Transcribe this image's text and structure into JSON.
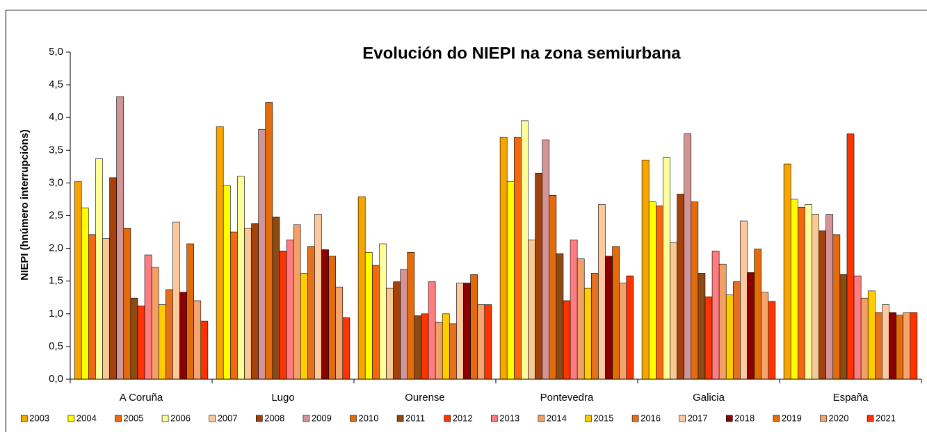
{
  "chart_data": {
    "type": "bar",
    "title": "Evolución do NIEPI na zona semiurbana",
    "y_label": "NIEPI (hnúmero interrupcións)",
    "categories": [
      "A Coruña",
      "Lugo",
      "Ourense",
      "Pontevedra",
      "Galicia",
      "España"
    ],
    "ylim": [
      0,
      5
    ],
    "yticks": [
      {
        "value": 0,
        "label": "0,0"
      },
      {
        "value": 0.5,
        "label": "0,5"
      },
      {
        "value": 1,
        "label": "1,0"
      },
      {
        "value": 1.5,
        "label": "1,5"
      },
      {
        "value": 2,
        "label": "2,0"
      },
      {
        "value": 2.5,
        "label": "2,5"
      },
      {
        "value": 3,
        "label": "3,0"
      },
      {
        "value": 3.5,
        "label": "3,5"
      },
      {
        "value": 4,
        "label": "4,0"
      },
      {
        "value": 4.5,
        "label": "4,5"
      },
      {
        "value": 5,
        "label": "5,0"
      }
    ],
    "legend": "bottom",
    "series": [
      {
        "name": "2003",
        "color": "#f7a600",
        "values": [
          3.02,
          3.86,
          2.79,
          3.7,
          3.35,
          3.29
        ]
      },
      {
        "name": "2004",
        "color": "#ffff00",
        "values": [
          2.62,
          2.96,
          1.94,
          3.02,
          2.71,
          2.75
        ]
      },
      {
        "name": "2005",
        "color": "#f26a10",
        "values": [
          2.21,
          2.25,
          1.74,
          3.7,
          2.65,
          2.63
        ]
      },
      {
        "name": "2006",
        "color": "#ffff99",
        "values": [
          3.37,
          3.1,
          2.07,
          3.95,
          3.39,
          2.67
        ]
      },
      {
        "name": "2007",
        "color": "#f9c994",
        "values": [
          2.15,
          2.31,
          1.39,
          2.13,
          2.09,
          2.52
        ]
      },
      {
        "name": "2008",
        "color": "#a6410b",
        "values": [
          3.08,
          2.38,
          1.49,
          3.15,
          2.83,
          2.27
        ]
      },
      {
        "name": "2009",
        "color": "#d29494",
        "values": [
          4.32,
          3.82,
          1.68,
          3.66,
          3.75,
          2.52
        ]
      },
      {
        "name": "2010",
        "color": "#e46c0a",
        "values": [
          2.31,
          4.23,
          1.94,
          2.81,
          2.71,
          2.21
        ]
      },
      {
        "name": "2011",
        "color": "#8c4a14",
        "values": [
          1.24,
          2.48,
          0.97,
          1.92,
          1.62,
          1.6
        ]
      },
      {
        "name": "2012",
        "color": "#ff3300",
        "values": [
          1.12,
          1.96,
          1.0,
          1.2,
          1.26,
          3.75
        ]
      },
      {
        "name": "2013",
        "color": "#ff7c80",
        "values": [
          1.9,
          2.13,
          1.49,
          2.13,
          1.96,
          1.58
        ]
      },
      {
        "name": "2014",
        "color": "#f3a066",
        "values": [
          1.71,
          2.36,
          0.87,
          1.84,
          1.76,
          1.24
        ]
      },
      {
        "name": "2015",
        "color": "#ffcc00",
        "values": [
          1.14,
          1.62,
          1.0,
          1.39,
          1.29,
          1.35
        ]
      },
      {
        "name": "2016",
        "color": "#e47020",
        "values": [
          1.37,
          2.03,
          0.85,
          1.62,
          1.49,
          1.02
        ]
      },
      {
        "name": "2017",
        "color": "#fcc89c",
        "values": [
          2.4,
          2.52,
          1.47,
          2.67,
          2.42,
          1.14
        ]
      },
      {
        "name": "2018",
        "color": "#8b0000",
        "values": [
          1.33,
          1.98,
          1.47,
          1.88,
          1.63,
          1.02
        ]
      },
      {
        "name": "2019",
        "color": "#e36c0a",
        "values": [
          2.07,
          1.88,
          1.6,
          2.03,
          1.99,
          0.98
        ]
      },
      {
        "name": "2020",
        "color": "#f4a46e",
        "values": [
          1.2,
          1.41,
          1.14,
          1.47,
          1.33,
          1.02
        ]
      },
      {
        "name": "2021",
        "color": "#ff3300",
        "values": [
          0.89,
          0.94,
          1.14,
          1.58,
          1.19,
          1.02
        ]
      }
    ]
  }
}
